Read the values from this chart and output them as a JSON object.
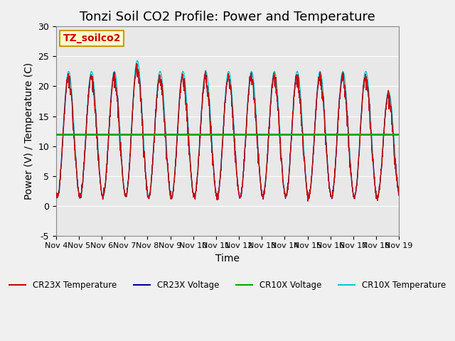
{
  "title": "Tonzi Soil CO2 Profile: Power and Temperature",
  "xlabel": "Time",
  "ylabel": "Power (V) / Temperature (C)",
  "ylim": [
    -5,
    30
  ],
  "xlim": [
    0,
    15
  ],
  "x_tick_labels": [
    "Nov 4",
    "Nov 5",
    "Nov 6",
    "Nov 7",
    "Nov 8",
    "Nov 9",
    "Nov 10",
    "Nov 11",
    "Nov 12",
    "Nov 13",
    "Nov 14",
    "Nov 15",
    "Nov 16",
    "Nov 17",
    "Nov 18",
    "Nov 19"
  ],
  "annotation_text": "TZ_soilco2",
  "annotation_facecolor": "#ffffcc",
  "annotation_edgecolor": "#cc9900",
  "annotation_textcolor": "#cc0000",
  "bg_color": "#e8e8e8",
  "plot_bg_color": "#e8e8e8",
  "cr23x_temp_color": "#cc0000",
  "cr23x_volt_color": "#000099",
  "cr10x_volt_color": "#00aa00",
  "cr10x_temp_color": "#00cccc",
  "hline_value": 11.9,
  "title_fontsize": 13,
  "axis_label_fontsize": 10
}
